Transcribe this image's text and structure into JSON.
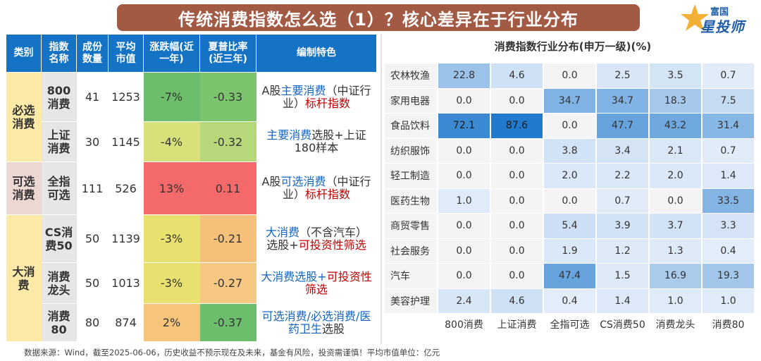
{
  "title": "传统消费指数怎么选（1）？核心差异在于行业分布",
  "logo": {
    "top": "富国",
    "bottom": "星投师",
    "icon": "star-logo-icon"
  },
  "left_table": {
    "headers": [
      "类别",
      "指数名称",
      "成份数量",
      "平均市值",
      "涨跌幅(近一年)",
      "夏普比率(近三年)",
      "编制特色"
    ],
    "categories": [
      "必选消费",
      "可选消费",
      "大消费"
    ],
    "rows": [
      {
        "name": "800消费",
        "count": "41",
        "cap": "1253",
        "chg": "-7%",
        "sharpe": "-0.33",
        "f1": "A股",
        "f2": "主要消费",
        "f3": "（中证行业）",
        "f4": "标杆指数"
      },
      {
        "name": "上证消费",
        "count": "30",
        "cap": "1145",
        "chg": "-4%",
        "sharpe": "-0.32",
        "f1": "主要消费",
        "f2": "选股+上证180样本"
      },
      {
        "name": "全指可选",
        "count": "111",
        "cap": "526",
        "chg": "13%",
        "sharpe": "0.11",
        "f1": "A股",
        "f2": "可选消费",
        "f3": "（中证行业）",
        "f4": "标杆指数"
      },
      {
        "name": "CS消费50",
        "count": "50",
        "cap": "1139",
        "chg": "-3%",
        "sharpe": "-0.21",
        "f1": "大消费",
        "f2": "（不含汽车）",
        "f3": "选股+",
        "f4": "可投资性筛选"
      },
      {
        "name": "消费龙头",
        "count": "50",
        "cap": "1013",
        "chg": "-3%",
        "sharpe": "-0.27",
        "f1": "大消费选股+",
        "f2": "可投资性筛选"
      },
      {
        "name": "消费80",
        "count": "80",
        "cap": "874",
        "chg": "2%",
        "sharpe": "-0.37",
        "f1": "可选消费/必选消费/医药卫生",
        "f2": "选股"
      }
    ]
  },
  "colors": {
    "header_blue": "#1473c5",
    "cat_yellow": "#fde9a8",
    "cat_pink": "#ecd7d2",
    "chg": [
      "#6cbd6c",
      "#d8e07a",
      "#f46a6a",
      "#e8e06f",
      "#e8e06f",
      "#f7c47b"
    ],
    "sharpe": [
      "#7cc36e",
      "#b6d77a",
      "#f46a6a",
      "#f5c07a",
      "#f7c883",
      "#6cbd6c"
    ]
  },
  "right_table": {
    "title": "消费指数行业分布(申万一级)(%)",
    "columns": [
      "800消费",
      "上证消费",
      "全指可选",
      "CS消费50",
      "消费龙头",
      "消费80"
    ],
    "rows": [
      {
        "label": "农林牧渔",
        "values": [
          "22.8",
          "4.6",
          "0.0",
          "2.5",
          "3.5",
          "0.7"
        ]
      },
      {
        "label": "家用电器",
        "values": [
          "0.0",
          "0.0",
          "34.7",
          "34.7",
          "18.3",
          "7.5"
        ]
      },
      {
        "label": "食品饮料",
        "values": [
          "72.1",
          "87.6",
          "0.0",
          "47.7",
          "43.2",
          "31.4"
        ]
      },
      {
        "label": "纺织服饰",
        "values": [
          "0.0",
          "0.0",
          "3.8",
          "3.4",
          "2.1",
          "0.7"
        ]
      },
      {
        "label": "轻工制造",
        "values": [
          "0.0",
          "0.0",
          "2.0",
          "2.2",
          "2.0",
          "1.4"
        ]
      },
      {
        "label": "医药生物",
        "values": [
          "1.0",
          "0.0",
          "0.0",
          "0.7",
          "0.0",
          "33.5"
        ]
      },
      {
        "label": "商贸零售",
        "values": [
          "0.0",
          "0.0",
          "5.4",
          "3.9",
          "3.7",
          "3.3"
        ]
      },
      {
        "label": "社会服务",
        "values": [
          "0.0",
          "0.0",
          "1.9",
          "1.2",
          "1.3",
          "0.4"
        ]
      },
      {
        "label": "汽车",
        "values": [
          "0.0",
          "0.0",
          "47.4",
          "1.5",
          "16.9",
          "19.3"
        ]
      },
      {
        "label": "美容护理",
        "values": [
          "2.4",
          "4.6",
          "0.4",
          "1.4",
          "1.0",
          "1.0"
        ]
      }
    ]
  },
  "footer": "数据来源：Wind，截至2025-06-06，历史收益不预示现在及未来，基金有风险，投资需谨慎！平均市值单位：亿元"
}
